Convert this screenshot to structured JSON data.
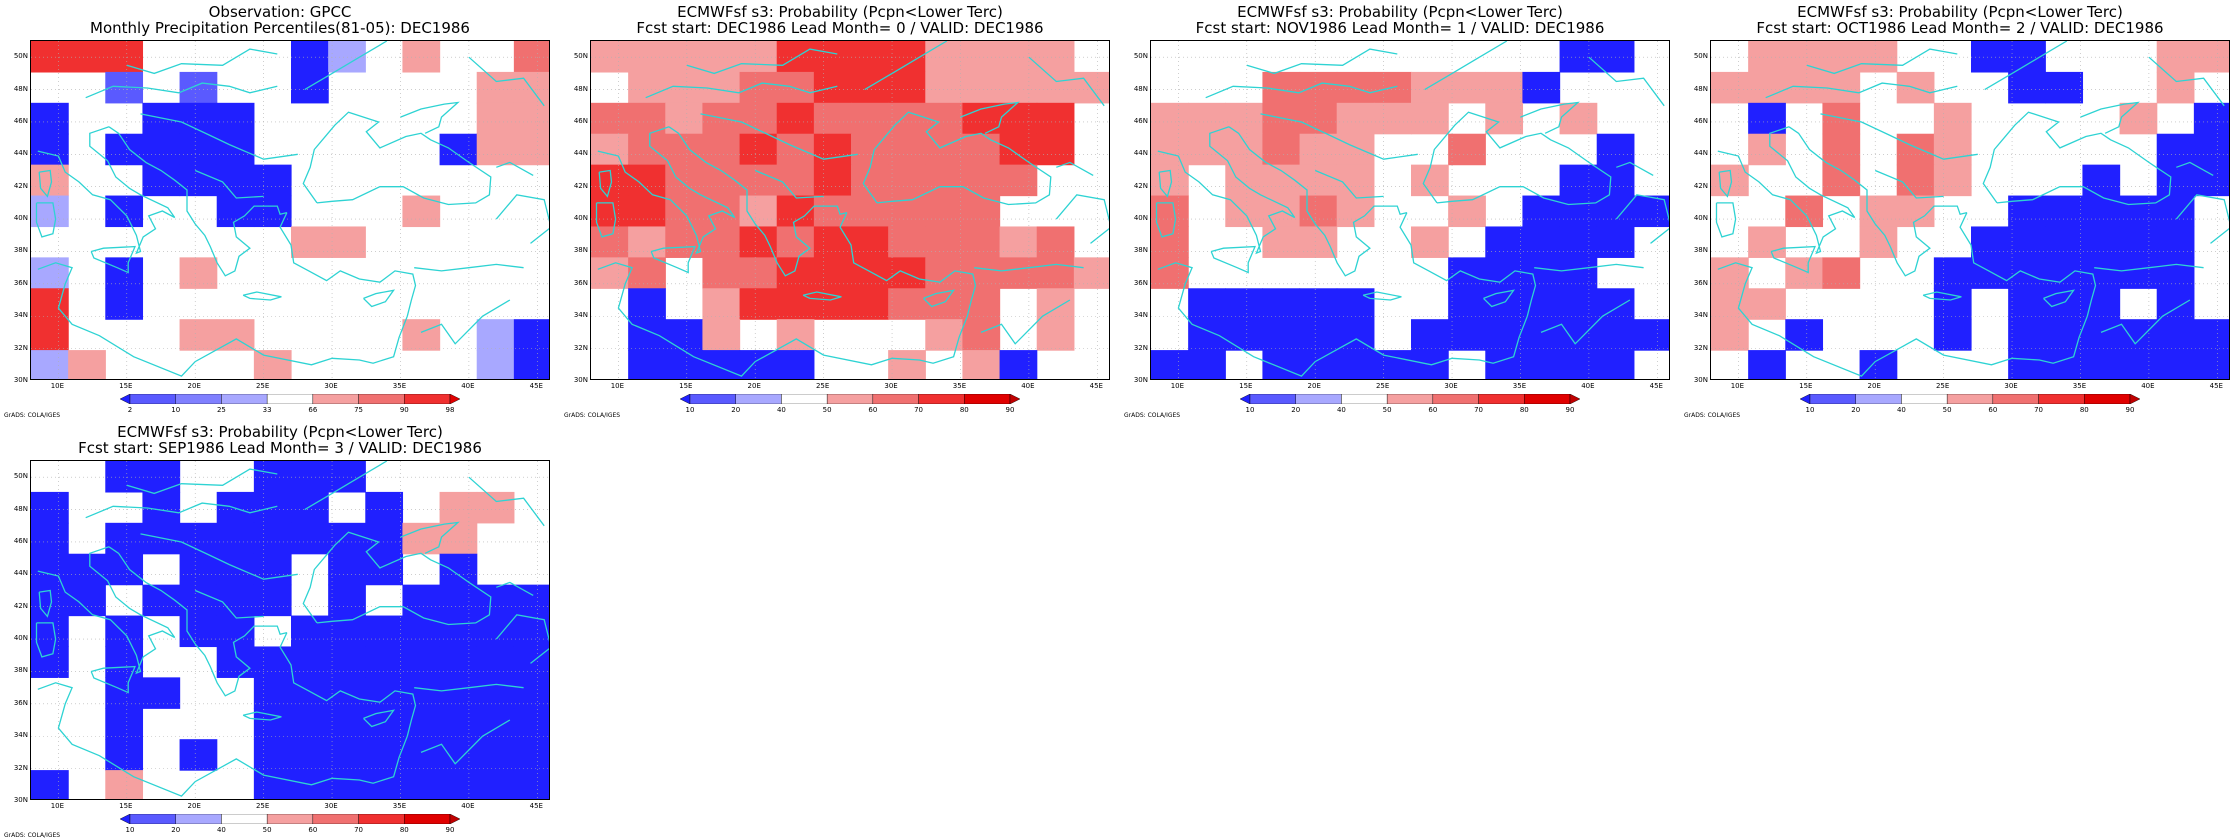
{
  "colors": {
    "dblue": "#2020ff",
    "mblue": "#5a5aff",
    "lblue": "#a8a8ff",
    "lred": "#f5a0a0",
    "mred": "#f07070",
    "red": "#f03030",
    "dred": "#e00000",
    "coast": "#2ed3d3",
    "grid": "#b0b0b0"
  },
  "lat_ticks": [
    "30N",
    "32N",
    "34N",
    "36N",
    "38N",
    "40N",
    "42N",
    "44N",
    "46N",
    "48N",
    "50N"
  ],
  "lon_ticks": [
    "10E",
    "15E",
    "20E",
    "25E",
    "30E",
    "35E",
    "40E",
    "45E"
  ],
  "credit": "GrADS: COLA/IGES",
  "panels": [
    {
      "title1": "Observation: GPCC",
      "title2": "Monthly Precipitation Percentiles(81-05): DEC1986",
      "legend_labels": [
        "2",
        "10",
        "25",
        "33",
        "66",
        "75",
        "90",
        "98"
      ],
      "legend_colors": [
        "#2020ff",
        "#5a5aff",
        "#8080ff",
        "#a8a8ff",
        "#ffffff",
        "#f5a0a0",
        "#f07070",
        "#f03030",
        "#e00000"
      ],
      "grid": [
        "555..  Ll 3..44",
        "  2.2. L   .333",
        "L  LLL.  . .333",
        "L LLLL... .L333",
        "3. LLLL..  .. ",
        "l.L. LL.. 3 ..l",
        " . . . 33.....",
        "1 L.3 .  . .  .",
        "5.L . ..  .  ..",
        "5.  33 .. 3.lL ",
        "13. ..3 . ..lLL"
      ]
    },
    {
      "title1": "ECMWFsf s3: Probability (Pcpn<Lower Terc)",
      "title2": "Fcst start: DEC1986  Lead Month= 0 / VALID: DEC1986",
      "legend_labels": [
        "10",
        "20",
        "40",
        "50",
        "60",
        "70",
        "80",
        "90"
      ],
      "legend_colors": [
        "#2020ff",
        "#5a5aff",
        "#a8a8ff",
        "#ffffff",
        "#f5a0a0",
        "#f07070",
        "#f03030",
        "#e00000",
        "#c00000"
      ],
      "grid": [
        "3333355553333",
        " 3334455533333",
        "4434454444555",
        "3444545444455",
        "554444544444",
        "55443544444",
        "4344545544434",
        "34 44555544443",
        " L 35555444 3",
        " LL3 3 . 34 3",
        " LLLLL. 3 3L "
      ]
    },
    {
      "title1": "ECMWFsf s3: Probability (Pcpn<Lower Terc)",
      "title2": "Fcst start: NOV1986  Lead Month= 1 / VALID: DEC1986",
      "legend_labels": [
        "10",
        "20",
        "40",
        "50",
        "60",
        "70",
        "80",
        "90"
      ],
      "legend_colors": [
        "#2020ff",
        "#5a5aff",
        "#a8a8ff",
        "#ffffff",
        "#f5a0a0",
        "#f07070",
        "#f03030",
        "#e00000",
        "#c00000"
      ],
      "grid": [
        "           LL ",
        "   4444333L ",
        "33344333 3 3",
        "333433  4   L",
        "3 3333 3   LL",
        "4 3343  3 LLLL",
        "4  33  3 LLLL",
        "4.      LLLL  ",
        " LLLLL  LLLLL ",
        " LLLLL LLLLLLL",
        "LL LLLLL LLLL"
      ]
    },
    {
      "title1": "ECMWFsf s3: Probability (Pcpn<Lower Terc)",
      "title2": "Fcst start: OCT1986  Lead Month= 2 / VALID: DEC1986",
      "legend_labels": [
        "10",
        "20",
        "40",
        "50",
        "60",
        "70",
        "80",
        "90"
      ],
      "legend_colors": [
        "#2020ff",
        "#5a5aff",
        "#a8a8ff",
        "#ffffff",
        "#f5a0a0",
        "#f07070",
        "#f03030",
        "#e00000",
        "#c00000"
      ],
      "grid": [
        " 3333  LL   33",
        "3333 3  LL  3 ",
        " L 4  3    3 L",
        " 3 4 43     LL",
        "3  4 43   L LL",
        "  4 33  LLLLL",
        " 3  3  LLLLLL",
        "3 34  LLLLLLL",
        "33    L LLL L",
        "3 L   L LLLLLL",
        " L  L   LLLLLL"
      ]
    },
    {
      "title1": "ECMWFsf s3: Probability (Pcpn<Lower Terc)",
      "title2": "Fcst start: SEP1986  Lead Month= 3 / VALID: DEC1986",
      "legend_labels": [
        "10",
        "20",
        "40",
        "50",
        "60",
        "70",
        "80",
        "90"
      ],
      "legend_colors": [
        "#2020ff",
        "#5a5aff",
        "#a8a8ff",
        "#ffffff",
        "#f5a0a0",
        "#f07070",
        "#f03030",
        "#e00000",
        "#c00000"
      ],
      "grid": [
        "  LL  LLL     ",
        "L  L LLL L 33 ",
        "L LLLLLLLL33",
        "LLL LLL LL L",
        "LL LLLL L LLLL",
        "L L LL LLLLLLL",
        "L L  LLLLLLLLL",
        "  LL  LLLLLLLL",
        "  L   LLLLLLLL",
        "  L L LLLLLLLL",
        "L 3   LLLLLLLL"
      ]
    }
  ]
}
